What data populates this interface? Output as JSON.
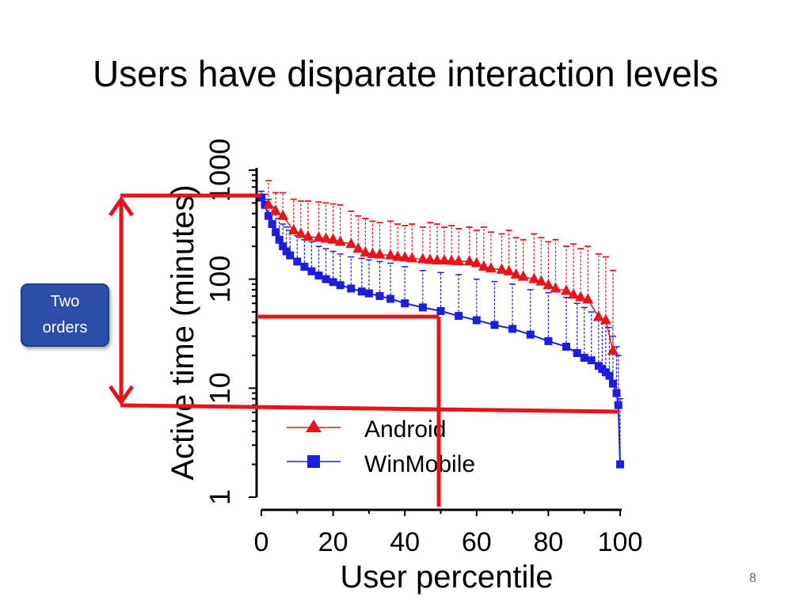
{
  "slide": {
    "title": "Users have disparate interaction levels",
    "page_number": "8",
    "callout": {
      "line1": "Two",
      "line2": "orders"
    }
  },
  "colors": {
    "android": "#e8141b",
    "winmobile": "#1d1de0",
    "annotation": "#e8141b",
    "callout_bg": "#2b4fa8"
  },
  "chart_data": {
    "type": "scatter",
    "title": "",
    "xlabel": "User percentile",
    "ylabel": "Active time (minutes)",
    "xlim": [
      0,
      100
    ],
    "ylim": [
      1,
      1000
    ],
    "yscale": "log",
    "x_ticks": [
      0,
      20,
      40,
      60,
      80,
      100
    ],
    "x_tick_labels": [
      "0",
      "20",
      "40",
      "60",
      "80",
      "100"
    ],
    "y_ticks": [
      1,
      10,
      100,
      1000
    ],
    "y_tick_labels": [
      "1",
      "10",
      "100",
      "1000"
    ],
    "legend": {
      "position": "lower-left",
      "entries": [
        "Android",
        "WinMobile"
      ]
    },
    "grid": false,
    "series": [
      {
        "name": "Android",
        "marker": "triangle",
        "x": [
          2,
          4,
          6,
          9,
          11,
          13,
          16,
          18,
          20,
          22,
          25,
          27,
          29,
          31,
          33,
          36,
          38,
          40,
          42,
          45,
          47,
          49,
          51,
          53,
          55,
          58,
          60,
          62,
          64,
          67,
          69,
          71,
          73,
          76,
          78,
          80,
          82,
          85,
          87,
          89,
          91,
          94,
          96,
          98
        ],
        "y": [
          480,
          420,
          380,
          280,
          260,
          245,
          240,
          235,
          230,
          220,
          210,
          190,
          175,
          170,
          168,
          165,
          160,
          158,
          155,
          152,
          150,
          148,
          148,
          147,
          146,
          145,
          140,
          130,
          125,
          122,
          118,
          110,
          105,
          100,
          95,
          88,
          82,
          78,
          72,
          68,
          65,
          45,
          42,
          22
        ],
        "err_upper": [
          800,
          620,
          620,
          540,
          520,
          520,
          510,
          500,
          490,
          480,
          420,
          380,
          360,
          340,
          330,
          340,
          320,
          310,
          320,
          300,
          330,
          320,
          300,
          310,
          290,
          300,
          280,
          300,
          270,
          260,
          280,
          240,
          230,
          260,
          240,
          220,
          230,
          200,
          210,
          190,
          200,
          170,
          160,
          120
        ]
      },
      {
        "name": "WinMobile",
        "marker": "square",
        "x": [
          0,
          1,
          2,
          3,
          4,
          5,
          6,
          7,
          8,
          10,
          12,
          14,
          16,
          18,
          20,
          22,
          25,
          28,
          30,
          33,
          36,
          40,
          45,
          50,
          55,
          60,
          65,
          70,
          75,
          80,
          85,
          88,
          90,
          92,
          94,
          95,
          96,
          97,
          98,
          99,
          99.5,
          100
        ],
        "y": [
          560,
          480,
          380,
          320,
          270,
          230,
          200,
          180,
          165,
          145,
          130,
          118,
          108,
          100,
          94,
          88,
          82,
          77,
          74,
          70,
          66,
          60,
          55,
          51,
          46,
          42,
          38,
          35,
          31,
          27,
          24,
          21,
          19,
          18,
          16,
          15,
          14,
          13,
          11,
          9,
          7,
          2
        ],
        "err_upper": [
          640,
          600,
          540,
          460,
          400,
          360,
          320,
          300,
          280,
          250,
          230,
          220,
          200,
          190,
          180,
          170,
          160,
          155,
          150,
          145,
          140,
          130,
          120,
          115,
          110,
          100,
          95,
          90,
          80,
          75,
          68,
          60,
          55,
          50,
          45,
          42,
          40,
          36,
          30,
          24,
          20,
          8
        ]
      }
    ],
    "annotations": {
      "range_top": 500,
      "range_bottom": 6,
      "median_x": 50,
      "median_y": 43
    }
  }
}
